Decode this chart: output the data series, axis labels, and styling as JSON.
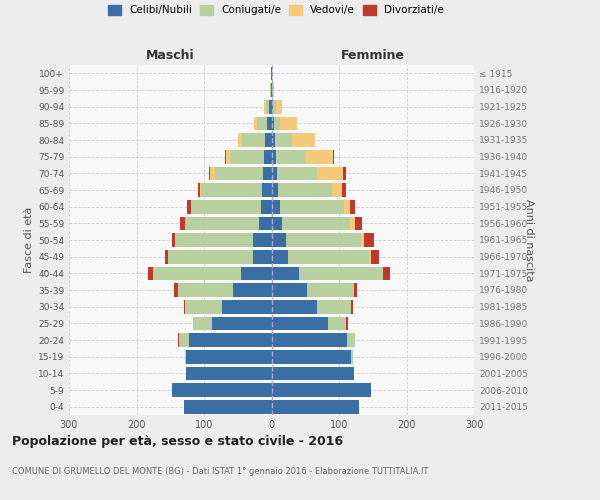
{
  "age_groups": [
    "0-4",
    "5-9",
    "10-14",
    "15-19",
    "20-24",
    "25-29",
    "30-34",
    "35-39",
    "40-44",
    "45-49",
    "50-54",
    "55-59",
    "60-64",
    "65-69",
    "70-74",
    "75-79",
    "80-84",
    "85-89",
    "90-94",
    "95-99",
    "100+"
  ],
  "birth_years": [
    "2011-2015",
    "2006-2010",
    "2001-2005",
    "1996-2000",
    "1991-1995",
    "1986-1990",
    "1981-1985",
    "1976-1980",
    "1971-1975",
    "1966-1970",
    "1961-1965",
    "1956-1960",
    "1951-1955",
    "1946-1950",
    "1941-1945",
    "1936-1940",
    "1931-1935",
    "1926-1930",
    "1921-1925",
    "1916-1920",
    "≤ 1915"
  ],
  "males": {
    "celibi": [
      130,
      148,
      126,
      126,
      122,
      88,
      73,
      57,
      45,
      28,
      28,
      18,
      15,
      14,
      13,
      11,
      9,
      6,
      3,
      1,
      1
    ],
    "coniugati": [
      0,
      0,
      0,
      2,
      15,
      28,
      55,
      82,
      130,
      125,
      115,
      110,
      105,
      90,
      70,
      50,
      35,
      15,
      5,
      1,
      0
    ],
    "vedovi": [
      0,
      0,
      0,
      0,
      0,
      0,
      0,
      0,
      0,
      0,
      0,
      0,
      0,
      2,
      8,
      7,
      5,
      5,
      3,
      0,
      0
    ],
    "divorziati": [
      0,
      0,
      0,
      0,
      1,
      1,
      2,
      5,
      8,
      5,
      5,
      8,
      5,
      3,
      2,
      1,
      0,
      0,
      0,
      0,
      0
    ]
  },
  "females": {
    "nubili": [
      130,
      148,
      122,
      118,
      112,
      83,
      68,
      52,
      40,
      25,
      22,
      16,
      12,
      10,
      8,
      6,
      5,
      3,
      2,
      1,
      1
    ],
    "coniugate": [
      0,
      0,
      0,
      2,
      12,
      28,
      50,
      70,
      125,
      120,
      110,
      100,
      95,
      80,
      60,
      45,
      25,
      10,
      4,
      1,
      0
    ],
    "vedove": [
      0,
      0,
      0,
      0,
      0,
      0,
      0,
      0,
      0,
      2,
      5,
      8,
      10,
      15,
      38,
      40,
      35,
      25,
      10,
      2,
      0
    ],
    "divorziate": [
      0,
      0,
      0,
      0,
      0,
      2,
      2,
      5,
      10,
      12,
      15,
      10,
      7,
      5,
      4,
      2,
      0,
      0,
      0,
      0,
      0
    ]
  },
  "color_celibi": "#3a6ea5",
  "color_coniugati": "#b8cfa0",
  "color_vedovi": "#f5c97a",
  "color_divorziati": "#c0392b",
  "title": "Popolazione per età, sesso e stato civile - 2016",
  "subtitle": "COMUNE DI GRUMELLO DEL MONTE (BG) - Dati ISTAT 1° gennaio 2016 - Elaborazione TUTTITALIA.IT",
  "xlabel_left": "Maschi",
  "xlabel_right": "Femmine",
  "ylabel_left": "Fasce di età",
  "ylabel_right": "Anni di nascita",
  "xlim": 300,
  "bg_color": "#ececec",
  "plot_bg": "#f8f8f8"
}
